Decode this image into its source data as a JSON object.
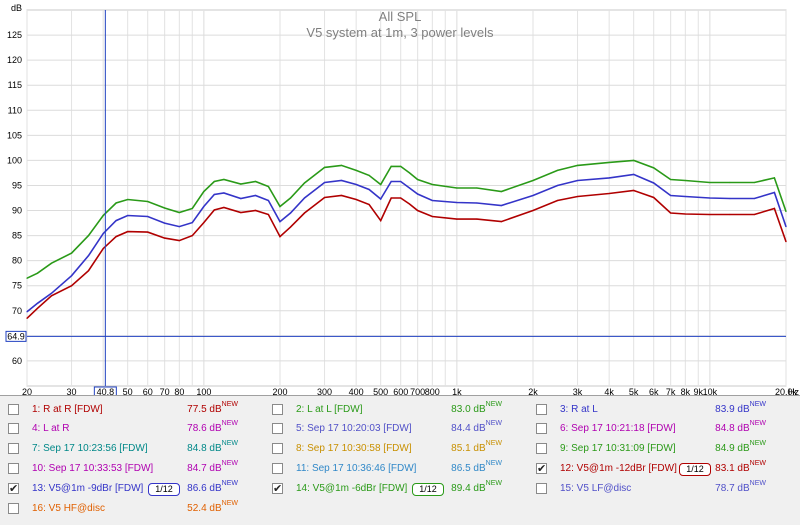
{
  "graph": {
    "title": "All SPL",
    "subtitle": "V5 system at 1m, 3 power levels",
    "y_unit": "dB",
    "x_unit": "Hz",
    "cursor_x_label": "40.8",
    "cursor_y_label": "64.9"
  },
  "chart_data": {
    "type": "line",
    "title": "All SPL",
    "subtitle": "V5 system at 1m, 3 power levels",
    "xlabel": "Hz",
    "ylabel": "dB",
    "xscale": "log",
    "xlim": [
      20,
      20000
    ],
    "ylim": [
      55,
      130
    ],
    "grid": true,
    "x_tick_labels": [
      "20",
      "30",
      "40",
      "50",
      "60",
      "70",
      "80",
      "100",
      "200",
      "300",
      "400",
      "500",
      "600",
      "700",
      "800",
      "1k",
      "2k",
      "3k",
      "4k",
      "5k",
      "6k",
      "7k",
      "8k",
      "9k",
      "10k",
      "20.0k"
    ],
    "x_tick_values": [
      20,
      30,
      40,
      50,
      60,
      70,
      80,
      100,
      200,
      300,
      400,
      500,
      600,
      700,
      800,
      1000,
      2000,
      3000,
      4000,
      5000,
      6000,
      7000,
      8000,
      9000,
      10000,
      20000
    ],
    "y_ticks": [
      60,
      65,
      70,
      75,
      80,
      85,
      90,
      95,
      100,
      105,
      110,
      115,
      120,
      125
    ],
    "cursor": {
      "x": 40.8,
      "y": 64.9
    },
    "series": [
      {
        "name": "14: V5@1m -6dBr [FDW]",
        "color": "#2a9a18",
        "x": [
          20,
          22,
          25,
          30,
          35,
          40,
          45,
          50,
          60,
          70,
          80,
          90,
          100,
          110,
          120,
          140,
          160,
          180,
          200,
          220,
          250,
          300,
          350,
          400,
          450,
          500,
          550,
          600,
          650,
          700,
          800,
          1000,
          1200,
          1500,
          2000,
          2500,
          3000,
          4000,
          5000,
          6000,
          7000,
          8000,
          10000,
          12000,
          15000,
          18000,
          20000
        ],
        "y": [
          76.5,
          77.5,
          79.5,
          81.5,
          85,
          89,
          91.5,
          92.2,
          91.8,
          90.5,
          89.6,
          90.4,
          93.8,
          95.8,
          96.2,
          95.3,
          95.8,
          94.8,
          90.8,
          92.5,
          95.5,
          98.6,
          99.0,
          98.0,
          97.0,
          95.2,
          98.8,
          98.8,
          97.5,
          96.2,
          95.2,
          94.5,
          94.5,
          93.8,
          96.0,
          98.0,
          99.0,
          99.6,
          100.0,
          98.5,
          96.2,
          96.0,
          95.6,
          95.6,
          95.6,
          96.5,
          89.8
        ]
      },
      {
        "name": "13: V5@1m -9dBr [FDW]",
        "color": "#3434c8",
        "x": [
          20,
          22,
          25,
          30,
          35,
          40,
          45,
          50,
          60,
          70,
          80,
          90,
          100,
          110,
          120,
          140,
          160,
          180,
          200,
          220,
          250,
          300,
          350,
          400,
          450,
          500,
          550,
          600,
          650,
          700,
          800,
          1000,
          1200,
          1500,
          2000,
          2500,
          3000,
          4000,
          5000,
          6000,
          7000,
          8000,
          10000,
          12000,
          15000,
          18000,
          20000
        ],
        "y": [
          69.8,
          71.5,
          73.5,
          77,
          81,
          85.4,
          88,
          89,
          88.8,
          87.5,
          86.8,
          87.6,
          90.8,
          93.2,
          93.5,
          92.4,
          93.0,
          92.0,
          87.8,
          89.5,
          92.5,
          95.6,
          96.0,
          95.2,
          94.2,
          92.3,
          95.8,
          95.8,
          94.5,
          93.3,
          92.0,
          91.6,
          91.5,
          91.0,
          93.0,
          95.0,
          96.0,
          96.5,
          97.2,
          95.5,
          93.0,
          92.8,
          92.5,
          92.4,
          92.4,
          93.6,
          86.8
        ]
      },
      {
        "name": "12: V5@1m -12dBr [FDW]",
        "color": "#b00000",
        "x": [
          20,
          22,
          25,
          30,
          35,
          40,
          45,
          50,
          60,
          70,
          80,
          90,
          100,
          110,
          120,
          140,
          160,
          180,
          200,
          220,
          250,
          300,
          350,
          400,
          450,
          500,
          550,
          600,
          650,
          700,
          800,
          1000,
          1200,
          1500,
          2000,
          2500,
          3000,
          4000,
          5000,
          6000,
          7000,
          8000,
          10000,
          12000,
          15000,
          18000,
          20000
        ],
        "y": [
          68.5,
          70.5,
          73,
          75,
          78,
          82.4,
          84.8,
          85.8,
          85.7,
          84.5,
          84,
          85,
          87.6,
          90.1,
          90.6,
          89.6,
          90.0,
          89.2,
          84.8,
          86.7,
          89.5,
          92.6,
          93.0,
          92.2,
          91.2,
          88.0,
          92.5,
          92.5,
          91.3,
          90.0,
          88.8,
          88.3,
          88.3,
          87.8,
          90.0,
          92.0,
          92.8,
          93.4,
          94.0,
          92.6,
          89.5,
          89.3,
          89.2,
          89.2,
          89.2,
          90.4,
          83.8
        ]
      }
    ]
  },
  "legend": [
    {
      "id": "1",
      "label": "1: R at R [FDW]",
      "value": "77.5 dB",
      "sup": "NEW",
      "color": "#b00000",
      "checked": false,
      "col": 0,
      "row": 0
    },
    {
      "id": "2",
      "label": "2: L at L [FDW]",
      "value": "83.0 dB",
      "sup": "NEW",
      "color": "#2a9a18",
      "checked": false,
      "col": 1,
      "row": 0
    },
    {
      "id": "3",
      "label": "3: R at L",
      "value": "83.9 dB",
      "sup": "NEW",
      "color": "#3434c8",
      "checked": false,
      "col": 2,
      "row": 0
    },
    {
      "id": "4",
      "label": "4: L at R",
      "value": "78.6 dB",
      "sup": "NEW",
      "color": "#b000b0",
      "checked": false,
      "col": 0,
      "row": 1
    },
    {
      "id": "5",
      "label": "5: Sep 17 10:20:03 [FDW]",
      "value": "84.4 dB",
      "sup": "NEW",
      "color": "#5050c8",
      "checked": false,
      "col": 1,
      "row": 1
    },
    {
      "id": "6",
      "label": "6: Sep 17 10:21:18 [FDW]",
      "value": "84.8 dB",
      "sup": "NEW",
      "color": "#b000b0",
      "checked": false,
      "col": 2,
      "row": 1
    },
    {
      "id": "7",
      "label": "7: Sep 17 10:23:56 [FDW]",
      "value": "84.8 dB",
      "sup": "NEW",
      "color": "#008888",
      "checked": false,
      "col": 0,
      "row": 2
    },
    {
      "id": "8",
      "label": "8: Sep 17 10:30:58 [FDW]",
      "value": "85.1 dB",
      "sup": "NEW",
      "color": "#c89000",
      "checked": false,
      "col": 1,
      "row": 2
    },
    {
      "id": "9",
      "label": "9: Sep 17 10:31:09 [FDW]",
      "value": "84.9 dB",
      "sup": "NEW",
      "color": "#2a9a18",
      "checked": false,
      "col": 2,
      "row": 2
    },
    {
      "id": "10",
      "label": "10: Sep 17 10:33:53 [FDW]",
      "value": "84.7 dB",
      "sup": "NEW",
      "color": "#b000b0",
      "checked": false,
      "col": 0,
      "row": 3
    },
    {
      "id": "11",
      "label": "11: Sep 17 10:36:46 [FDW]",
      "value": "86.5 dB",
      "sup": "NEW",
      "color": "#3088c8",
      "checked": false,
      "col": 1,
      "row": 3
    },
    {
      "id": "12",
      "label": "12: V5@1m -12dBr [FDW]",
      "value": "83.1 dB",
      "sup": "NEW",
      "color": "#b00000",
      "checked": true,
      "col": 2,
      "row": 3,
      "smoothing": "1/12"
    },
    {
      "id": "13",
      "label": "13: V5@1m -9dBr [FDW]",
      "value": "86.6 dB",
      "sup": "NEW",
      "color": "#3434c8",
      "checked": true,
      "col": 0,
      "row": 4,
      "smoothing": "1/12"
    },
    {
      "id": "14",
      "label": "14: V5@1m -6dBr [FDW]",
      "value": "89.4 dB",
      "sup": "NEW",
      "color": "#2a9a18",
      "checked": true,
      "col": 1,
      "row": 4,
      "smoothing": "1/12"
    },
    {
      "id": "15",
      "label": "15: V5 LF@disc",
      "value": "78.7 dB",
      "sup": "NEW",
      "color": "#5050c8",
      "checked": false,
      "col": 2,
      "row": 4
    },
    {
      "id": "16",
      "label": "16: V5 HF@disc",
      "value": "52.4 dB",
      "sup": "NEW",
      "color": "#e06000",
      "checked": false,
      "col": 0,
      "row": 5
    }
  ]
}
